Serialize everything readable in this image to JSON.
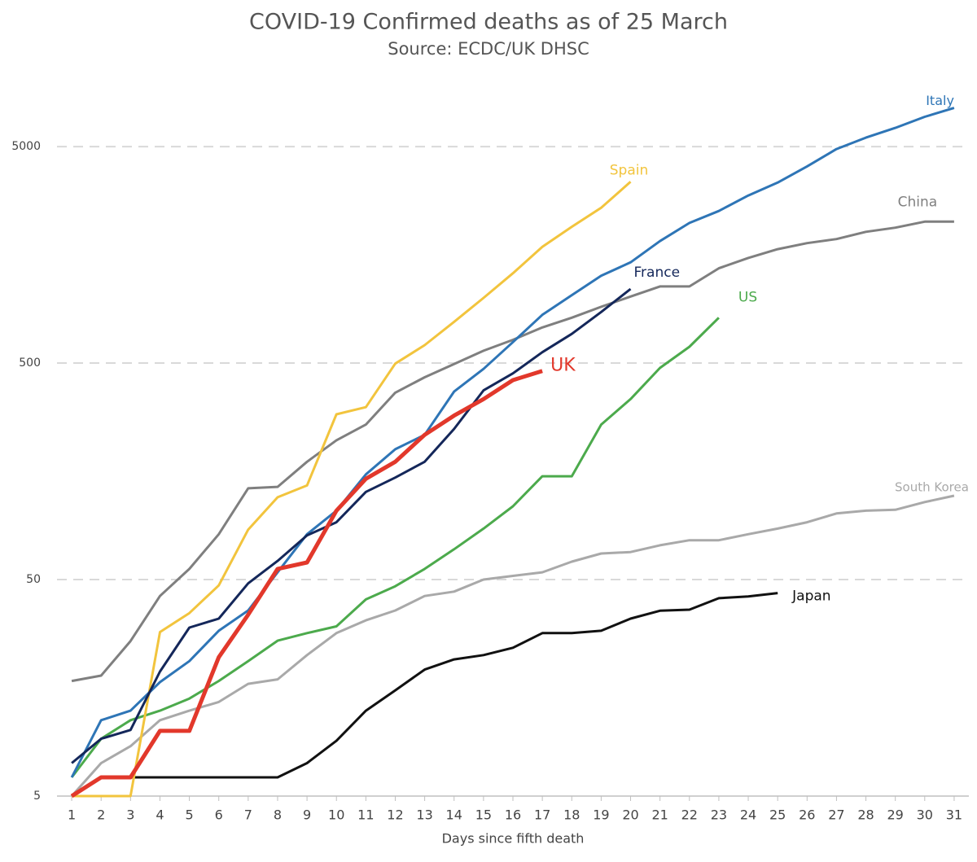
{
  "chart_data": {
    "type": "line",
    "title": "COVID-19 Confirmed deaths as of 25 March",
    "subtitle": "Source: ECDC/UK DHSC",
    "x_label": "Days since fifth death",
    "yscale": "log",
    "grid": true,
    "x": [
      1,
      2,
      3,
      4,
      5,
      6,
      7,
      8,
      9,
      10,
      11,
      12,
      13,
      14,
      15,
      16,
      17,
      18,
      19,
      20,
      21,
      22,
      23,
      24,
      25,
      26,
      27,
      28,
      29,
      30,
      31
    ],
    "xlim": [
      0.5,
      31.5
    ],
    "xticks": [
      1,
      2,
      3,
      4,
      5,
      6,
      7,
      8,
      9,
      10,
      11,
      12,
      13,
      14,
      15,
      16,
      17,
      18,
      19,
      20,
      21,
      22,
      23,
      24,
      25,
      26,
      27,
      28,
      29,
      30,
      31
    ],
    "ylim": [
      5,
      10000
    ],
    "yticks": [
      5,
      50,
      500,
      5000
    ],
    "series": [
      {
        "name": "China",
        "color": "#7f7f7f",
        "values": [
          17,
          18,
          26,
          42,
          56,
          81,
          132,
          134,
          175,
          220,
          260,
          365,
          430,
          495,
          570,
          640,
          730,
          810,
          910,
          1015,
          1130,
          1130,
          1370,
          1530,
          1680,
          1790,
          1870,
          2020,
          2110,
          2250,
          2250
        ]
      },
      {
        "name": "South Korea",
        "color": "#a9a9a9",
        "values": [
          5,
          7.1,
          8.5,
          11.2,
          12.4,
          13.6,
          16.5,
          17.3,
          22.4,
          28.3,
          32.4,
          36,
          42,
          44,
          50,
          52,
          54,
          60.5,
          66,
          67,
          72,
          76,
          76,
          81,
          86,
          92,
          101,
          104,
          105,
          114,
          122
        ]
      },
      {
        "name": "Japan",
        "color": "#111111",
        "values": [
          5,
          6.1,
          6.1,
          6.1,
          6.1,
          6.1,
          6.1,
          6.1,
          7.1,
          9,
          12.4,
          15.4,
          19.2,
          21.4,
          22.4,
          24.2,
          28.3,
          28.3,
          29,
          33,
          35.9,
          36.3,
          41,
          41.8,
          43.3,
          null,
          null,
          null,
          null,
          null,
          null
        ]
      },
      {
        "name": "US",
        "color": "#4caa4c",
        "values": [
          6.1,
          9.2,
          11.2,
          12.4,
          14.1,
          17,
          21,
          26.1,
          28.3,
          30.4,
          40.5,
          46.6,
          56,
          69,
          86,
          109,
          150,
          150,
          260,
          341,
          475,
          595,
          810,
          null,
          null,
          null,
          null,
          null,
          null,
          null,
          null
        ]
      },
      {
        "name": "Spain",
        "color": "#f2c43d",
        "values": [
          5,
          5,
          5,
          28.6,
          35,
          47,
          85,
          120,
          136,
          290,
          313,
          497,
          605,
          775,
          1000,
          1300,
          1720,
          2130,
          2610,
          3440,
          null,
          null,
          null,
          null,
          null,
          null,
          null,
          null,
          null,
          null,
          null
        ]
      },
      {
        "name": "Italy",
        "color": "#2e75b6",
        "values": [
          6.1,
          11.2,
          12.4,
          16.8,
          21,
          29,
          36,
          54,
          81,
          104,
          153,
          200,
          233,
          369,
          470,
          625,
          835,
          1030,
          1265,
          1460,
          1830,
          2220,
          2520,
          2970,
          3410,
          4050,
          4870,
          5500,
          6100,
          6860,
          7540
        ]
      },
      {
        "name": "France",
        "color": "#14275a",
        "values": [
          7.1,
          9.2,
          10.1,
          18.8,
          30,
          33,
          48,
          61,
          80,
          92,
          127,
          148,
          175,
          248,
          374,
          448,
          561,
          682,
          861,
          1100,
          null,
          null,
          null,
          null,
          null,
          null,
          null,
          null,
          null,
          null,
          null
        ]
      },
      {
        "name": "UK",
        "color": "#e2382b",
        "values": [
          5,
          6.1,
          6.1,
          10,
          10,
          21.9,
          34.4,
          56,
          60,
          104,
          146,
          175,
          233,
          286,
          341,
          417,
          460,
          null,
          null,
          null,
          null,
          null,
          null,
          null,
          null,
          null,
          null,
          null,
          null,
          null,
          null
        ]
      }
    ]
  }
}
